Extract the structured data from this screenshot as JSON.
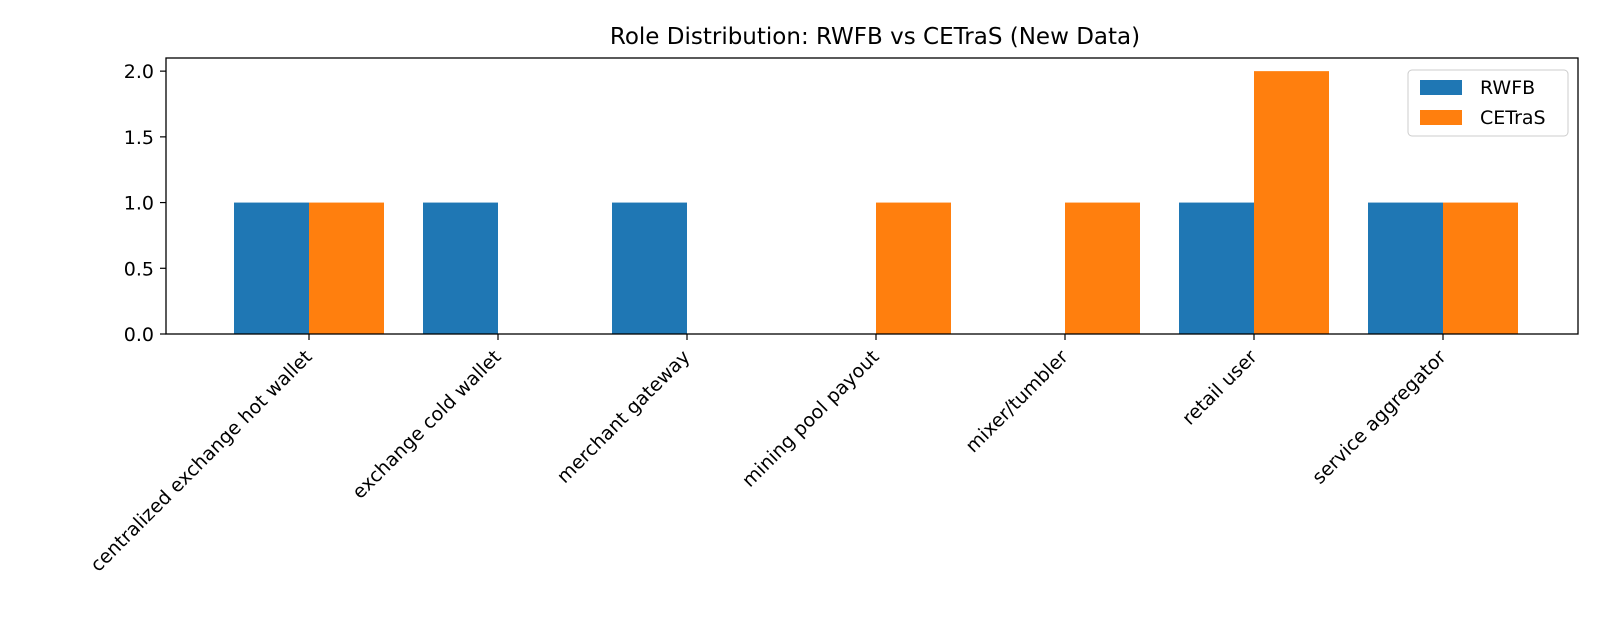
{
  "chart_data": {
    "type": "bar",
    "title": "Role Distribution: RWFB vs CETraS (New Data)",
    "xlabel": "",
    "ylabel": "",
    "categories": [
      "centralized exchange hot wallet",
      "exchange cold wallet",
      "merchant gateway",
      "mining pool payout",
      "mixer/tumbler",
      "retail user",
      "service aggregator"
    ],
    "series": [
      {
        "name": "RWFB",
        "color": "#1f77b4",
        "values": [
          1,
          1,
          1,
          0,
          0,
          1,
          1
        ]
      },
      {
        "name": "CETraS",
        "color": "#ff7f0e",
        "values": [
          1,
          0,
          0,
          1,
          1,
          2,
          1
        ]
      }
    ],
    "ylim": [
      0,
      2.1
    ],
    "yticks": [
      "0.0",
      "0.5",
      "1.0",
      "1.5",
      "2.0"
    ],
    "legend_position": "top-right",
    "grid": false
  }
}
